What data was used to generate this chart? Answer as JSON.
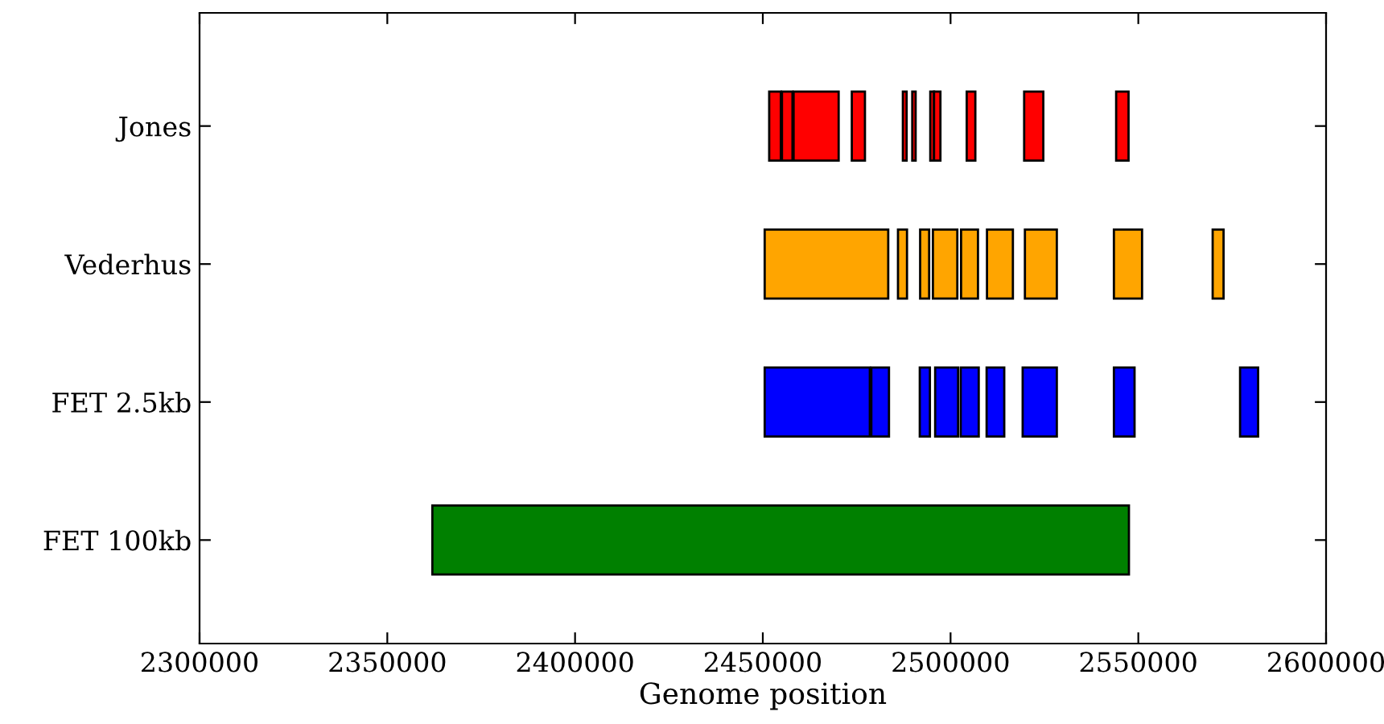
{
  "chart_data": {
    "type": "bar",
    "orientation": "horizontal",
    "xlabel": "Genome position",
    "categories": [
      "Jones",
      "Vederhus",
      "FET 2.5kb",
      "FET 100kb"
    ],
    "series": [
      {
        "colors": [
          "#ff0000",
          "#ffa500",
          "#0000ff",
          "#008000"
        ],
        "base": [
          2451700,
          2450500,
          2450500,
          2362000
        ],
        "values": [
          3100,
          32900,
          28000,
          185500
        ]
      },
      {
        "colors": [
          "#ff0000",
          "#ffa500",
          "#0000ff",
          null
        ],
        "base": [
          2455100,
          2486000,
          2478900,
          null
        ],
        "values": [
          2800,
          2400,
          4700,
          null
        ]
      },
      {
        "colors": [
          "#ff0000",
          "#ffa500",
          "#0000ff",
          null
        ],
        "base": [
          2458200,
          2491900,
          2491800,
          null
        ],
        "values": [
          12000,
          2400,
          2700,
          null
        ]
      },
      {
        "colors": [
          "#ff0000",
          "#ffa500",
          "#0000ff",
          null
        ],
        "base": [
          2473700,
          2495300,
          2495900,
          null
        ],
        "values": [
          3500,
          6500,
          6100,
          null
        ]
      },
      {
        "colors": [
          "#ff0000",
          "#ffa500",
          "#0000ff",
          null
        ],
        "base": [
          2487300,
          2502800,
          2502700,
          null
        ],
        "values": [
          1000,
          4500,
          4800,
          null
        ]
      },
      {
        "colors": [
          "#ff0000",
          "#ffa500",
          "#0000ff",
          null
        ],
        "base": [
          2489800,
          2509700,
          2509600,
          null
        ],
        "values": [
          900,
          6900,
          4700,
          null
        ]
      },
      {
        "colors": [
          "#ff0000",
          "#ffa500",
          "#0000ff",
          null
        ],
        "base": [
          2494600,
          2519800,
          2519200,
          null
        ],
        "values": [
          1000,
          8500,
          9100,
          null
        ]
      },
      {
        "colors": [
          "#ff0000",
          "#ffa500",
          "#0000ff",
          null
        ],
        "base": [
          2495600,
          2543500,
          2543500,
          null
        ],
        "values": [
          1700,
          7500,
          5500,
          null
        ]
      },
      {
        "colors": [
          "#ff0000",
          "#ffa500",
          "#0000ff",
          null
        ],
        "base": [
          2504300,
          2569800,
          2577100,
          null
        ],
        "values": [
          2300,
          2900,
          4800,
          null
        ]
      },
      {
        "colors": [
          "#ff0000",
          null,
          null,
          null
        ],
        "base": [
          2519600,
          null,
          null,
          null
        ],
        "values": [
          5100,
          null,
          null,
          null
        ]
      },
      {
        "colors": [
          "#ff0000",
          null,
          null,
          null
        ],
        "base": [
          2544100,
          null,
          null,
          null
        ],
        "values": [
          3300,
          null,
          null,
          null
        ]
      }
    ],
    "xlim": [
      2300000,
      2600000
    ],
    "xticks": [
      2300000,
      2350000,
      2400000,
      2450000,
      2500000,
      2550000,
      2600000
    ],
    "grid": false,
    "legend": false
  }
}
